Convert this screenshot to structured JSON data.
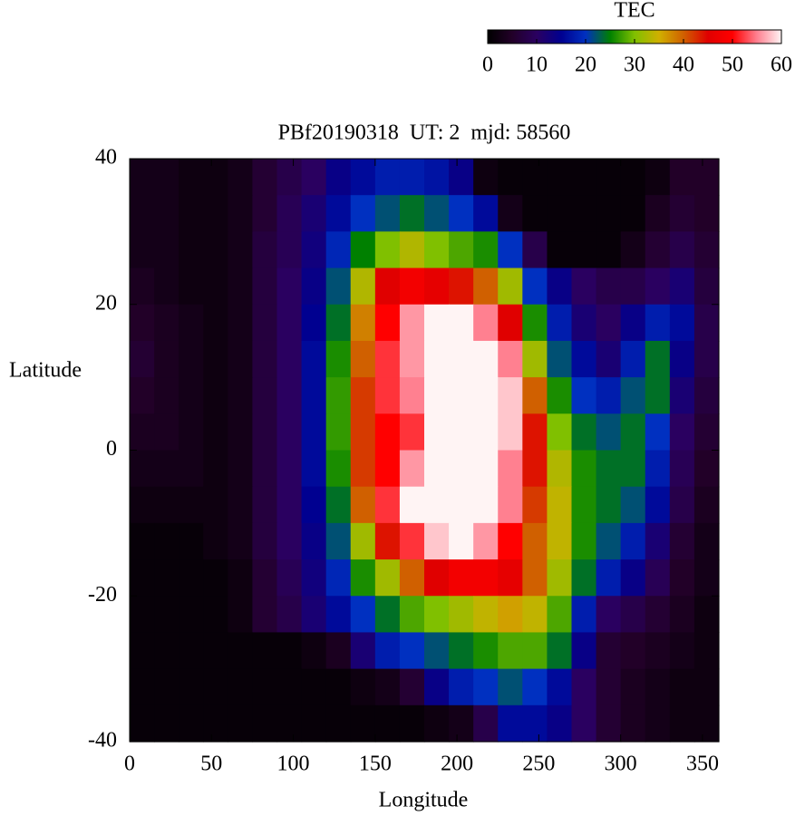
{
  "chart_data": {
    "type": "heatmap",
    "title": "PBf20190318  UT: 2  mjd: 58560",
    "xlabel": "Longitude",
    "ylabel": "Latitude",
    "xlim": [
      0,
      360
    ],
    "xticks": [
      0,
      50,
      100,
      150,
      200,
      250,
      300,
      350
    ],
    "ylim": [
      -40,
      40
    ],
    "yticks": [
      -40,
      -20,
      0,
      20,
      40
    ],
    "x": [
      7.5,
      22.5,
      37.5,
      52.5,
      67.5,
      82.5,
      97.5,
      112.5,
      127.5,
      142.5,
      157.5,
      172.5,
      187.5,
      202.5,
      217.5,
      232.5,
      247.5,
      262.5,
      277.5,
      292.5,
      307.5,
      322.5,
      337.5,
      352.5
    ],
    "y": [
      37.5,
      32.5,
      27.5,
      22.5,
      17.5,
      12.5,
      7.5,
      2.5,
      -2.5,
      -7.5,
      -12.5,
      -17.5,
      -22.5,
      -27.5,
      -32.5,
      -37.5
    ],
    "z": [
      [
        3,
        3,
        2,
        2,
        3,
        6,
        8,
        10,
        14,
        16,
        18,
        18,
        17,
        14,
        2,
        1,
        1,
        1,
        1,
        1,
        1,
        2,
        5,
        5
      ],
      [
        3,
        3,
        2,
        2,
        3,
        6,
        9,
        12,
        16,
        20,
        22,
        24,
        22,
        20,
        16,
        3,
        1,
        1,
        1,
        1,
        1,
        4,
        6,
        5
      ],
      [
        3,
        3,
        2,
        2,
        3,
        7,
        9,
        13,
        19,
        25,
        30,
        33,
        30,
        28,
        26,
        20,
        8,
        1,
        1,
        1,
        3,
        6,
        8,
        6
      ],
      [
        4,
        3,
        2,
        2,
        3,
        7,
        10,
        14,
        22,
        33,
        45,
        48,
        46,
        44,
        40,
        32,
        20,
        14,
        10,
        8,
        8,
        10,
        12,
        7
      ],
      [
        5,
        4,
        3,
        2,
        3,
        7,
        10,
        15,
        24,
        38,
        50,
        56,
        60,
        60,
        55,
        45,
        26,
        18,
        12,
        10,
        14,
        18,
        16,
        8
      ],
      [
        6,
        4,
        3,
        2,
        3,
        7,
        10,
        16,
        26,
        40,
        52,
        56,
        60,
        62,
        60,
        55,
        32,
        22,
        16,
        12,
        18,
        24,
        14,
        8
      ],
      [
        5,
        4,
        3,
        2,
        3,
        7,
        10,
        16,
        27,
        42,
        52,
        55,
        62,
        62,
        62,
        58,
        40,
        26,
        20,
        18,
        22,
        24,
        12,
        7
      ],
      [
        4,
        4,
        3,
        2,
        3,
        7,
        10,
        16,
        27,
        42,
        50,
        52,
        60,
        62,
        62,
        58,
        44,
        30,
        24,
        22,
        24,
        20,
        10,
        6
      ],
      [
        3,
        3,
        3,
        2,
        3,
        7,
        10,
        16,
        26,
        42,
        50,
        56,
        62,
        62,
        60,
        55,
        44,
        33,
        26,
        24,
        24,
        18,
        9,
        5
      ],
      [
        2,
        2,
        2,
        2,
        3,
        7,
        10,
        15,
        24,
        40,
        52,
        60,
        62,
        62,
        60,
        55,
        42,
        34,
        26,
        24,
        22,
        16,
        8,
        4
      ],
      [
        1,
        1,
        1,
        2,
        3,
        7,
        10,
        14,
        22,
        32,
        44,
        52,
        58,
        60,
        56,
        50,
        40,
        34,
        26,
        22,
        18,
        12,
        6,
        3
      ],
      [
        1,
        1,
        1,
        1,
        2,
        6,
        9,
        13,
        19,
        26,
        32,
        40,
        45,
        48,
        48,
        46,
        40,
        32,
        24,
        18,
        14,
        9,
        5,
        3
      ],
      [
        1,
        1,
        1,
        1,
        2,
        6,
        8,
        12,
        16,
        20,
        24,
        28,
        30,
        32,
        34,
        36,
        34,
        28,
        18,
        10,
        8,
        6,
        4,
        2
      ],
      [
        1,
        1,
        1,
        1,
        1,
        1,
        1,
        2,
        4,
        12,
        18,
        20,
        22,
        24,
        26,
        28,
        28,
        24,
        14,
        6,
        5,
        4,
        3,
        2
      ],
      [
        1,
        1,
        1,
        1,
        1,
        1,
        1,
        1,
        1,
        2,
        3,
        6,
        14,
        18,
        20,
        22,
        20,
        16,
        10,
        6,
        4,
        3,
        2,
        2
      ],
      [
        1,
        1,
        1,
        1,
        1,
        1,
        1,
        1,
        1,
        1,
        1,
        1,
        2,
        3,
        8,
        16,
        16,
        14,
        10,
        6,
        4,
        3,
        2,
        2
      ]
    ],
    "colorbar": {
      "title": "TEC",
      "lim": [
        0,
        60
      ],
      "ticks": [
        0,
        10,
        20,
        30,
        40,
        50,
        60
      ],
      "stops": [
        [
          0,
          "#000000"
        ],
        [
          5,
          "#220028"
        ],
        [
          10,
          "#2a0060"
        ],
        [
          15,
          "#000090"
        ],
        [
          20,
          "#0030c0"
        ],
        [
          25,
          "#008000"
        ],
        [
          30,
          "#80c000"
        ],
        [
          35,
          "#d0b000"
        ],
        [
          40,
          "#d06000"
        ],
        [
          45,
          "#e00000"
        ],
        [
          50,
          "#ff0000"
        ],
        [
          55,
          "#ff8090"
        ],
        [
          60,
          "#fff4f4"
        ]
      ]
    }
  }
}
